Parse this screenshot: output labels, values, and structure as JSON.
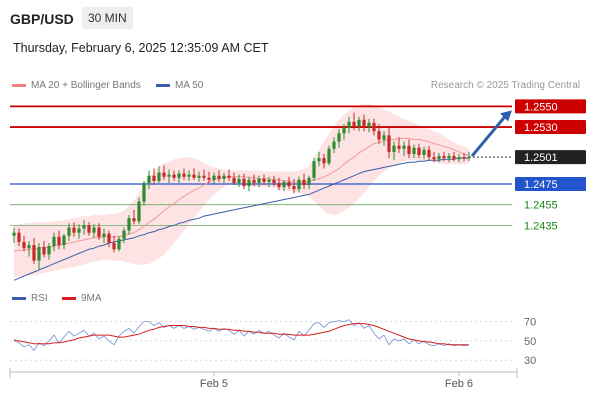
{
  "header": {
    "symbol": "GBP/USD",
    "timeframe": "30 MIN"
  },
  "datetime": "Thursday, February 6, 2025 12:35:09 AM CET",
  "legend": {
    "ma20": {
      "label": "MA 20 + Bollinger Bands",
      "color": "#f08080"
    },
    "ma50": {
      "label": "MA 50",
      "color": "#3a5fa8"
    }
  },
  "credit": "Research © 2025 Trading Central",
  "rsi_legend": {
    "rsi": {
      "label": "RSI",
      "color": "#3a5fa8"
    },
    "ma9": {
      "label": "9MA",
      "color": "#d62020"
    }
  },
  "colors": {
    "up": "#2e8b2e",
    "down": "#c62828",
    "resistance": "#cc0000",
    "support": "#2255cc",
    "target": "#1a8a1a",
    "arrow": "#2e5fad"
  },
  "chart_data": [
    {
      "type": "candlestick",
      "ylim": [
        1.239,
        1.256
      ],
      "levels": [
        {
          "value": 1.255,
          "label": "1.2550",
          "kind": "resistance"
        },
        {
          "value": 1.253,
          "label": "1.2530",
          "kind": "resistance"
        },
        {
          "value": 1.2501,
          "label": "1.2501",
          "kind": "last"
        },
        {
          "value": 1.2475,
          "label": "1.2475",
          "kind": "support"
        },
        {
          "value": 1.2455,
          "label": "1.2455",
          "kind": "target"
        },
        {
          "value": 1.2435,
          "label": "1.2435",
          "kind": "target"
        }
      ],
      "x_ticks": [
        {
          "index": 40,
          "label": "Feb 5"
        },
        {
          "index": 89,
          "label": "Feb 6"
        }
      ],
      "candles": [
        [
          1.2425,
          1.2433,
          1.2418,
          1.2428
        ],
        [
          1.2428,
          1.2432,
          1.2415,
          1.2419
        ],
        [
          1.2419,
          1.2425,
          1.241,
          1.2413
        ],
        [
          1.2413,
          1.242,
          1.2405,
          1.2416
        ],
        [
          1.2416,
          1.2423,
          1.2398,
          1.2401
        ],
        [
          1.2401,
          1.2418,
          1.2392,
          1.2414
        ],
        [
          1.2414,
          1.242,
          1.2404,
          1.2407
        ],
        [
          1.2407,
          1.2418,
          1.2402,
          1.2415
        ],
        [
          1.2415,
          1.2428,
          1.241,
          1.2424
        ],
        [
          1.2424,
          1.243,
          1.2412,
          1.2416
        ],
        [
          1.2416,
          1.2427,
          1.2412,
          1.2425
        ],
        [
          1.2425,
          1.2437,
          1.242,
          1.2433
        ],
        [
          1.2433,
          1.2438,
          1.2424,
          1.2428
        ],
        [
          1.2428,
          1.2436,
          1.2422,
          1.2432
        ],
        [
          1.2432,
          1.244,
          1.2426,
          1.2435
        ],
        [
          1.2435,
          1.2438,
          1.2425,
          1.2428
        ],
        [
          1.2428,
          1.2436,
          1.2423,
          1.2433
        ],
        [
          1.2433,
          1.2437,
          1.2421,
          1.2424
        ],
        [
          1.2424,
          1.2432,
          1.2418,
          1.2427
        ],
        [
          1.2427,
          1.243,
          1.2414,
          1.2418
        ],
        [
          1.2418,
          1.2425,
          1.2409,
          1.2412
        ],
        [
          1.2412,
          1.2425,
          1.241,
          1.2422
        ],
        [
          1.2422,
          1.2433,
          1.2418,
          1.243
        ],
        [
          1.243,
          1.2445,
          1.2426,
          1.2442
        ],
        [
          1.2442,
          1.245,
          1.2436,
          1.2439
        ],
        [
          1.2439,
          1.2462,
          1.2436,
          1.2458
        ],
        [
          1.2458,
          1.2478,
          1.2454,
          1.2476
        ],
        [
          1.2476,
          1.2488,
          1.247,
          1.2483
        ],
        [
          1.2483,
          1.249,
          1.2474,
          1.2478
        ],
        [
          1.2478,
          1.2492,
          1.2476,
          1.2486
        ],
        [
          1.2486,
          1.2493,
          1.2479,
          1.2482
        ],
        [
          1.2482,
          1.2489,
          1.2476,
          1.2484
        ],
        [
          1.2484,
          1.2488,
          1.2478,
          1.2481
        ],
        [
          1.2481,
          1.2488,
          1.2476,
          1.2485
        ],
        [
          1.2485,
          1.249,
          1.2479,
          1.2482
        ],
        [
          1.2482,
          1.2488,
          1.2478,
          1.2484
        ],
        [
          1.2484,
          1.249,
          1.2479,
          1.2481
        ],
        [
          1.2481,
          1.2487,
          1.2477,
          1.2483
        ],
        [
          1.2483,
          1.2489,
          1.2478,
          1.2481
        ],
        [
          1.2481,
          1.2487,
          1.2476,
          1.2479
        ],
        [
          1.2479,
          1.2486,
          1.2475,
          1.2483
        ],
        [
          1.2483,
          1.2488,
          1.2477,
          1.248
        ],
        [
          1.248,
          1.2486,
          1.2476,
          1.2483
        ],
        [
          1.2483,
          1.2489,
          1.2478,
          1.2481
        ],
        [
          1.2481,
          1.2486,
          1.2474,
          1.2476
        ],
        [
          1.2476,
          1.2484,
          1.2472,
          1.248
        ],
        [
          1.248,
          1.2485,
          1.247,
          1.2473
        ],
        [
          1.2473,
          1.2482,
          1.2468,
          1.2479
        ],
        [
          1.2479,
          1.2484,
          1.2473,
          1.2476
        ],
        [
          1.2476,
          1.2483,
          1.2472,
          1.248
        ],
        [
          1.248,
          1.2484,
          1.2474,
          1.2477
        ],
        [
          1.2477,
          1.2482,
          1.2472,
          1.2479
        ],
        [
          1.2479,
          1.2483,
          1.2473,
          1.2476
        ],
        [
          1.2476,
          1.2481,
          1.2469,
          1.2472
        ],
        [
          1.2472,
          1.2479,
          1.2468,
          1.2477
        ],
        [
          1.2477,
          1.2482,
          1.247,
          1.2473
        ],
        [
          1.2473,
          1.248,
          1.2466,
          1.247
        ],
        [
          1.247,
          1.2482,
          1.2467,
          1.2479
        ],
        [
          1.2479,
          1.2485,
          1.247,
          1.2474
        ],
        [
          1.2474,
          1.2483,
          1.247,
          1.2481
        ],
        [
          1.2481,
          1.25,
          1.2478,
          1.2497
        ],
        [
          1.2497,
          1.2506,
          1.2492,
          1.25
        ],
        [
          1.25,
          1.2504,
          1.249,
          1.2495
        ],
        [
          1.2495,
          1.2512,
          1.2493,
          1.2509
        ],
        [
          1.2509,
          1.252,
          1.2505,
          1.2516
        ],
        [
          1.2516,
          1.2528,
          1.251,
          1.2524
        ],
        [
          1.2524,
          1.2533,
          1.2518,
          1.2529
        ],
        [
          1.2529,
          1.254,
          1.2524,
          1.2535
        ],
        [
          1.2535,
          1.2544,
          1.2527,
          1.2531
        ],
        [
          1.2531,
          1.254,
          1.2526,
          1.2537
        ],
        [
          1.2537,
          1.2542,
          1.2526,
          1.253
        ],
        [
          1.253,
          1.2538,
          1.2525,
          1.2534
        ],
        [
          1.2534,
          1.2538,
          1.2522,
          1.2526
        ],
        [
          1.2526,
          1.2533,
          1.2514,
          1.2518
        ],
        [
          1.2518,
          1.2526,
          1.2512,
          1.2522
        ],
        [
          1.2522,
          1.253,
          1.25,
          1.2506
        ],
        [
          1.2506,
          1.2516,
          1.2498,
          1.2512
        ],
        [
          1.2512,
          1.252,
          1.2505,
          1.2509
        ],
        [
          1.2509,
          1.2516,
          1.2502,
          1.2512
        ],
        [
          1.2512,
          1.2518,
          1.25,
          1.2504
        ],
        [
          1.2504,
          1.2513,
          1.25,
          1.251
        ],
        [
          1.251,
          1.2514,
          1.25,
          1.2503
        ],
        [
          1.2503,
          1.2511,
          1.2499,
          1.2508
        ],
        [
          1.2508,
          1.2512,
          1.2498,
          1.2501
        ],
        [
          1.2501,
          1.2506,
          1.2496,
          1.2499
        ],
        [
          1.2499,
          1.2505,
          1.2496,
          1.2502
        ],
        [
          1.2502,
          1.2506,
          1.2497,
          1.25
        ],
        [
          1.25,
          1.2505,
          1.2496,
          1.2502
        ],
        [
          1.2502,
          1.2506,
          1.2497,
          1.2499
        ],
        [
          1.2499,
          1.2504,
          1.2496,
          1.2501
        ],
        [
          1.2501,
          1.2505,
          1.2497,
          1.25
        ],
        [
          1.25,
          1.2506,
          1.2497,
          1.2501
        ]
      ],
      "ma20": [
        1.241,
        1.2411,
        1.2411,
        1.2412,
        1.2412,
        1.2413,
        1.2414,
        1.2414,
        1.2415,
        1.2416,
        1.2417,
        1.2418,
        1.2419,
        1.242,
        1.2421,
        1.2422,
        1.2423,
        1.2423,
        1.2424,
        1.2424,
        1.2424,
        1.2424,
        1.2425,
        1.2427,
        1.2428,
        1.2431,
        1.2434,
        1.2438,
        1.2441,
        1.2445,
        1.2449,
        1.2453,
        1.2456,
        1.246,
        1.2463,
        1.2466,
        1.2469,
        1.2471,
        1.2474,
        1.2477,
        1.2479,
        1.248,
        1.2481,
        1.2482,
        1.2482,
        1.2482,
        1.2482,
        1.2481,
        1.2481,
        1.248,
        1.248,
        1.248,
        1.2479,
        1.2479,
        1.2478,
        1.2478,
        1.2477,
        1.2477,
        1.2477,
        1.2477,
        1.2479,
        1.248,
        1.2482,
        1.2484,
        1.2487,
        1.249,
        1.2494,
        1.2498,
        1.2501,
        1.2505,
        1.2508,
        1.2511,
        1.2514,
        1.2515,
        1.2517,
        1.2518,
        1.2518,
        1.2519,
        1.2519,
        1.2519,
        1.2518,
        1.2518,
        1.2517,
        1.2516,
        1.2514,
        1.2513,
        1.2511,
        1.251,
        1.2508,
        1.2506,
        1.2504,
        1.2502
      ],
      "bb_upper": [
        1.2436,
        1.2436,
        1.2437,
        1.2437,
        1.2438,
        1.2438,
        1.2438,
        1.2438,
        1.2439,
        1.2439,
        1.244,
        1.2441,
        1.2442,
        1.2443,
        1.2444,
        1.2444,
        1.2445,
        1.2445,
        1.2445,
        1.2446,
        1.2446,
        1.2447,
        1.2449,
        1.2454,
        1.2459,
        1.2466,
        1.2474,
        1.2481,
        1.2487,
        1.2492,
        1.2495,
        1.2497,
        1.2499,
        1.25,
        1.2501,
        1.2501,
        1.25,
        1.2498,
        1.2495,
        1.2493,
        1.2491,
        1.249,
        1.2489,
        1.2488,
        1.2488,
        1.2488,
        1.2488,
        1.2488,
        1.2488,
        1.2488,
        1.2487,
        1.2487,
        1.2487,
        1.2487,
        1.2487,
        1.2487,
        1.2487,
        1.2488,
        1.2489,
        1.2492,
        1.25,
        1.2508,
        1.2516,
        1.2523,
        1.2531,
        1.2537,
        1.2542,
        1.2546,
        1.2549,
        1.2551,
        1.2552,
        1.2552,
        1.2551,
        1.2549,
        1.2547,
        1.2545,
        1.2542,
        1.254,
        1.2538,
        1.2536,
        1.2534,
        1.2532,
        1.253,
        1.2528,
        1.2526,
        1.2524,
        1.2521,
        1.2518,
        1.2515,
        1.2513,
        1.2511,
        1.2509
      ],
      "bb_lower": [
        1.2385,
        1.2386,
        1.2386,
        1.2387,
        1.2387,
        1.2388,
        1.2389,
        1.239,
        1.2391,
        1.2392,
        1.2393,
        1.2394,
        1.2395,
        1.2396,
        1.2397,
        1.2399,
        1.24,
        1.2401,
        1.2402,
        1.2402,
        1.2401,
        1.2401,
        1.24,
        1.2399,
        1.2398,
        1.2397,
        1.2397,
        1.2398,
        1.24,
        1.2403,
        1.2407,
        1.2412,
        1.2418,
        1.2424,
        1.243,
        1.2436,
        1.2442,
        1.2448,
        1.2454,
        1.246,
        1.2465,
        1.2469,
        1.2472,
        1.2474,
        1.2475,
        1.2475,
        1.2474,
        1.2473,
        1.2472,
        1.2472,
        1.2472,
        1.2472,
        1.2471,
        1.247,
        1.2469,
        1.2468,
        1.2467,
        1.2466,
        1.2465,
        1.2463,
        1.2459,
        1.2454,
        1.2449,
        1.2446,
        1.2445,
        1.2446,
        1.2449,
        1.2452,
        1.2456,
        1.2461,
        1.2466,
        1.2472,
        1.2478,
        1.2483,
        1.2487,
        1.249,
        1.2493,
        1.2495,
        1.2497,
        1.2498,
        1.2498,
        1.2498,
        1.2498,
        1.2497,
        1.2496,
        1.2495,
        1.2494,
        1.2494,
        1.2494,
        1.2494,
        1.2494,
        1.2495
      ],
      "ma50": [
        1.2382,
        1.2384,
        1.2386,
        1.2388,
        1.239,
        1.2392,
        1.2394,
        1.2396,
        1.2398,
        1.24,
        1.2402,
        1.2404,
        1.2406,
        1.2408,
        1.241,
        1.2412,
        1.2413,
        1.2415,
        1.2416,
        1.2418,
        1.2419,
        1.242,
        1.2421,
        1.2422,
        1.2423,
        1.2425,
        1.2426,
        1.2428,
        1.2429,
        1.2431,
        1.2432,
        1.2434,
        1.2435,
        1.2437,
        1.2438,
        1.244,
        1.2441,
        1.2442,
        1.2444,
        1.2445,
        1.2446,
        1.2447,
        1.2448,
        1.2449,
        1.245,
        1.2451,
        1.2452,
        1.2453,
        1.2454,
        1.2455,
        1.2456,
        1.2457,
        1.2458,
        1.2459,
        1.246,
        1.2461,
        1.2462,
        1.2463,
        1.2464,
        1.2465,
        1.2467,
        1.2469,
        1.2471,
        1.2473,
        1.2475,
        1.2477,
        1.2479,
        1.2481,
        1.2483,
        1.2485,
        1.2487,
        1.2488,
        1.2489,
        1.249,
        1.2491,
        1.2492,
        1.2493,
        1.2494,
        1.2495,
        1.2496,
        1.2496,
        1.2497,
        1.2497,
        1.2498,
        1.2498,
        1.2498,
        1.2499,
        1.2499,
        1.2499,
        1.25,
        1.25,
        1.25
      ],
      "projection": {
        "from": 1.2501,
        "to": 1.255
      }
    },
    {
      "type": "line",
      "title": "RSI",
      "ylim": [
        25,
        80
      ],
      "y_ticks": [
        30,
        50,
        70
      ],
      "levels": [
        30,
        50,
        70
      ],
      "series": [
        {
          "name": "RSI",
          "values": [
            52,
            48,
            44,
            46,
            40,
            48,
            45,
            50,
            56,
            48,
            54,
            60,
            55,
            58,
            61,
            55,
            58,
            52,
            55,
            50,
            46,
            55,
            60,
            63,
            58,
            65,
            70,
            70,
            66,
            69,
            64,
            66,
            63,
            66,
            63,
            65,
            62,
            64,
            62,
            60,
            63,
            60,
            63,
            61,
            57,
            61,
            55,
            60,
            57,
            61,
            58,
            60,
            56,
            53,
            58,
            54,
            51,
            60,
            55,
            61,
            68,
            69,
            64,
            69,
            70,
            71,
            70,
            72,
            66,
            69,
            63,
            66,
            58,
            52,
            56,
            46,
            52,
            50,
            52,
            47,
            51,
            47,
            50,
            46,
            45,
            47,
            45,
            47,
            45,
            46,
            45,
            46
          ]
        },
        {
          "name": "9MA",
          "values": [
            50,
            50,
            49,
            48,
            47,
            47,
            47,
            47,
            48,
            48,
            49,
            50,
            51,
            53,
            54,
            55,
            56,
            56,
            56,
            56,
            55,
            54,
            54,
            55,
            56,
            57,
            59,
            61,
            62,
            64,
            65,
            66,
            66,
            66,
            66,
            65,
            65,
            64,
            64,
            63,
            63,
            62,
            62,
            62,
            61,
            61,
            60,
            60,
            59,
            59,
            58,
            58,
            58,
            57,
            57,
            57,
            56,
            56,
            56,
            56,
            57,
            58,
            59,
            60,
            62,
            64,
            66,
            67,
            68,
            68,
            68,
            67,
            66,
            64,
            62,
            60,
            58,
            56,
            54,
            52,
            51,
            50,
            49,
            49,
            48,
            47,
            47,
            46,
            46,
            46,
            46,
            46
          ]
        }
      ]
    }
  ]
}
